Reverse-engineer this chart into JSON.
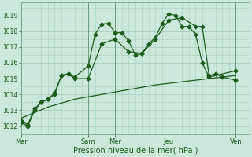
{
  "xlabel": "Pression niveau de la mer( hPa )",
  "bg_color": "#cce8dc",
  "grid_color": "#aacfbe",
  "line_color": "#1a5c1a",
  "ylim": [
    1011.5,
    1019.8
  ],
  "yticks": [
    1012,
    1013,
    1014,
    1015,
    1016,
    1017,
    1018,
    1019
  ],
  "day_labels": [
    "Mar",
    "Sam",
    "Mer",
    "Jeu",
    "Ven"
  ],
  "day_x": [
    0,
    10,
    14,
    22,
    32
  ],
  "vline_x": [
    0,
    10,
    14,
    22,
    32
  ],
  "xlim": [
    0,
    34
  ],
  "series1_x": [
    0,
    1,
    2,
    3,
    4,
    5,
    6,
    7,
    8,
    10,
    11,
    12,
    13,
    14,
    15,
    16,
    17,
    18,
    19,
    20,
    21,
    22,
    23,
    24,
    25,
    26,
    27,
    28,
    32
  ],
  "series1_y": [
    1012.2,
    1012.0,
    1013.0,
    1013.5,
    1013.7,
    1014.1,
    1015.2,
    1015.3,
    1015.1,
    1015.8,
    1017.8,
    1018.45,
    1018.5,
    1017.9,
    1017.9,
    1017.4,
    1016.5,
    1016.6,
    1017.2,
    1017.6,
    1018.5,
    1019.1,
    1019.0,
    1018.3,
    1018.3,
    1017.8,
    1016.0,
    1015.1,
    1015.5
  ],
  "series2_x": [
    0,
    1,
    2,
    3,
    4,
    5,
    6,
    7,
    8,
    10,
    12,
    14,
    16,
    18,
    20,
    22,
    24,
    26,
    27,
    28,
    29,
    30,
    32
  ],
  "series2_y": [
    1012.3,
    1012.1,
    1013.1,
    1013.5,
    1013.7,
    1014.0,
    1015.2,
    1015.3,
    1015.0,
    1015.0,
    1017.2,
    1017.5,
    1016.7,
    1016.6,
    1017.5,
    1018.7,
    1018.85,
    1018.3,
    1018.3,
    1015.2,
    1015.3,
    1015.1,
    1014.9
  ],
  "series3_x": [
    0,
    4,
    8,
    12,
    16,
    20,
    24,
    28,
    32
  ],
  "series3_y": [
    1012.5,
    1013.2,
    1013.7,
    1014.0,
    1014.3,
    1014.6,
    1014.8,
    1015.0,
    1015.2
  ]
}
